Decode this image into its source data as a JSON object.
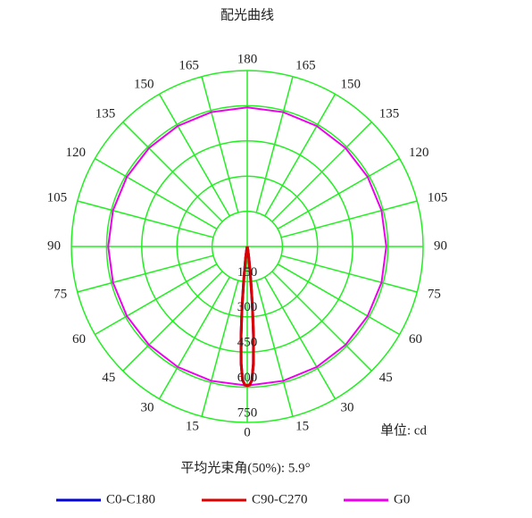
{
  "chart_data": {
    "type": "polar",
    "title": "配光曲线",
    "unit_label": "单位: cd",
    "annotation": "平均光束角(50%): 5.9°",
    "rlim": [
      0,
      750
    ],
    "rticks": [
      150,
      300,
      450,
      600,
      750
    ],
    "angle_ticks": [
      {
        "value": -165,
        "label": "165"
      },
      {
        "value": -150,
        "label": "150"
      },
      {
        "value": -135,
        "label": "135"
      },
      {
        "value": -120,
        "label": "120"
      },
      {
        "value": -105,
        "label": "105"
      },
      {
        "value": -90,
        "label": "90"
      },
      {
        "value": -75,
        "label": "75"
      },
      {
        "value": -60,
        "label": "60"
      },
      {
        "value": -45,
        "label": "45"
      },
      {
        "value": -30,
        "label": "30"
      },
      {
        "value": -15,
        "label": "15"
      },
      0,
      15,
      30,
      45,
      60,
      75,
      90,
      105,
      120,
      135,
      150,
      165,
      180
    ],
    "grid": true,
    "series": [
      {
        "name": "C0-C180",
        "color": "#0000dd",
        "angles": [
          -15,
          -10,
          -8,
          -6,
          -5,
          -4,
          -3,
          -2,
          -1,
          0,
          1,
          2,
          3,
          4,
          5,
          6,
          8,
          10,
          15
        ],
        "values": [
          0,
          15,
          50,
          140,
          250,
          380,
          500,
          570,
          590,
          593,
          590,
          570,
          500,
          380,
          250,
          140,
          50,
          15,
          0
        ]
      },
      {
        "name": "C90-C270",
        "color": "#dd0000",
        "angles": [
          -15,
          -10,
          -8,
          -6,
          -5,
          -4,
          -3,
          -2,
          -1,
          0,
          1,
          2,
          3,
          4,
          5,
          6,
          8,
          10,
          15
        ],
        "values": [
          0,
          15,
          50,
          140,
          250,
          380,
          500,
          570,
          590,
          593,
          590,
          570,
          500,
          380,
          250,
          140,
          50,
          15,
          0
        ]
      },
      {
        "name": "G0",
        "color": "#ee00ee",
        "angles": [
          0,
          15,
          30,
          45,
          60,
          75,
          90,
          105,
          120,
          135,
          150,
          165,
          180,
          195,
          210,
          225,
          240,
          255,
          270,
          285,
          300,
          315,
          330,
          345,
          360
        ],
        "values": [
          593,
          593,
          593,
          593,
          593,
          593,
          593,
          593,
          593,
          593,
          593,
          593,
          593,
          593,
          593,
          593,
          593,
          593,
          593,
          593,
          593,
          593,
          593,
          593,
          593
        ]
      }
    ]
  }
}
